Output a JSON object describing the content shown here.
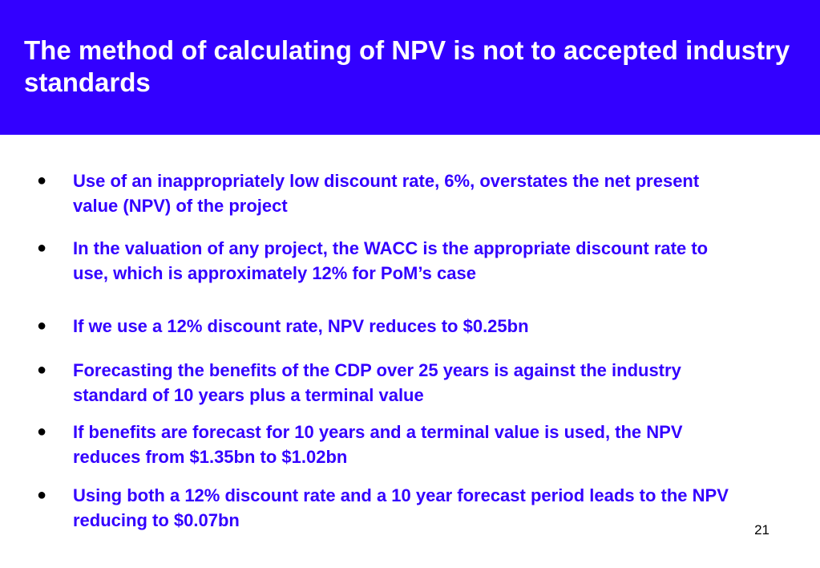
{
  "slide": {
    "title": "The method of calculating of NPV is not to accepted industry standards",
    "bullet_symbol": "●",
    "bullets": [
      {
        "text": "Use of an inappropriately low discount rate, 6%, overstates the net present value (NPV) of the project"
      },
      {
        "text": "In the valuation of any project, the WACC is the appropriate discount rate to use, which is approximately 12% for PoM’s case"
      },
      {
        "text": "If we use a 12% discount rate, NPV reduces to $0.25bn"
      },
      {
        "text": "Forecasting the benefits of the CDP over 25 years is against the industry standard of 10 years plus a terminal value"
      },
      {
        "text": "If benefits are forecast for 10 years and a terminal value is used, the NPV reduces from $1.35bn to $1.02bn"
      },
      {
        "text": "Using both a 12% discount rate and a 10 year forecast period leads to the NPV reducing to $0.07bn"
      }
    ],
    "page_number": "21"
  },
  "colors": {
    "title_background": "#3300ff",
    "title_text": "#ffffff",
    "bullet_text": "#3300ff",
    "bullet_dot": "#000000"
  }
}
